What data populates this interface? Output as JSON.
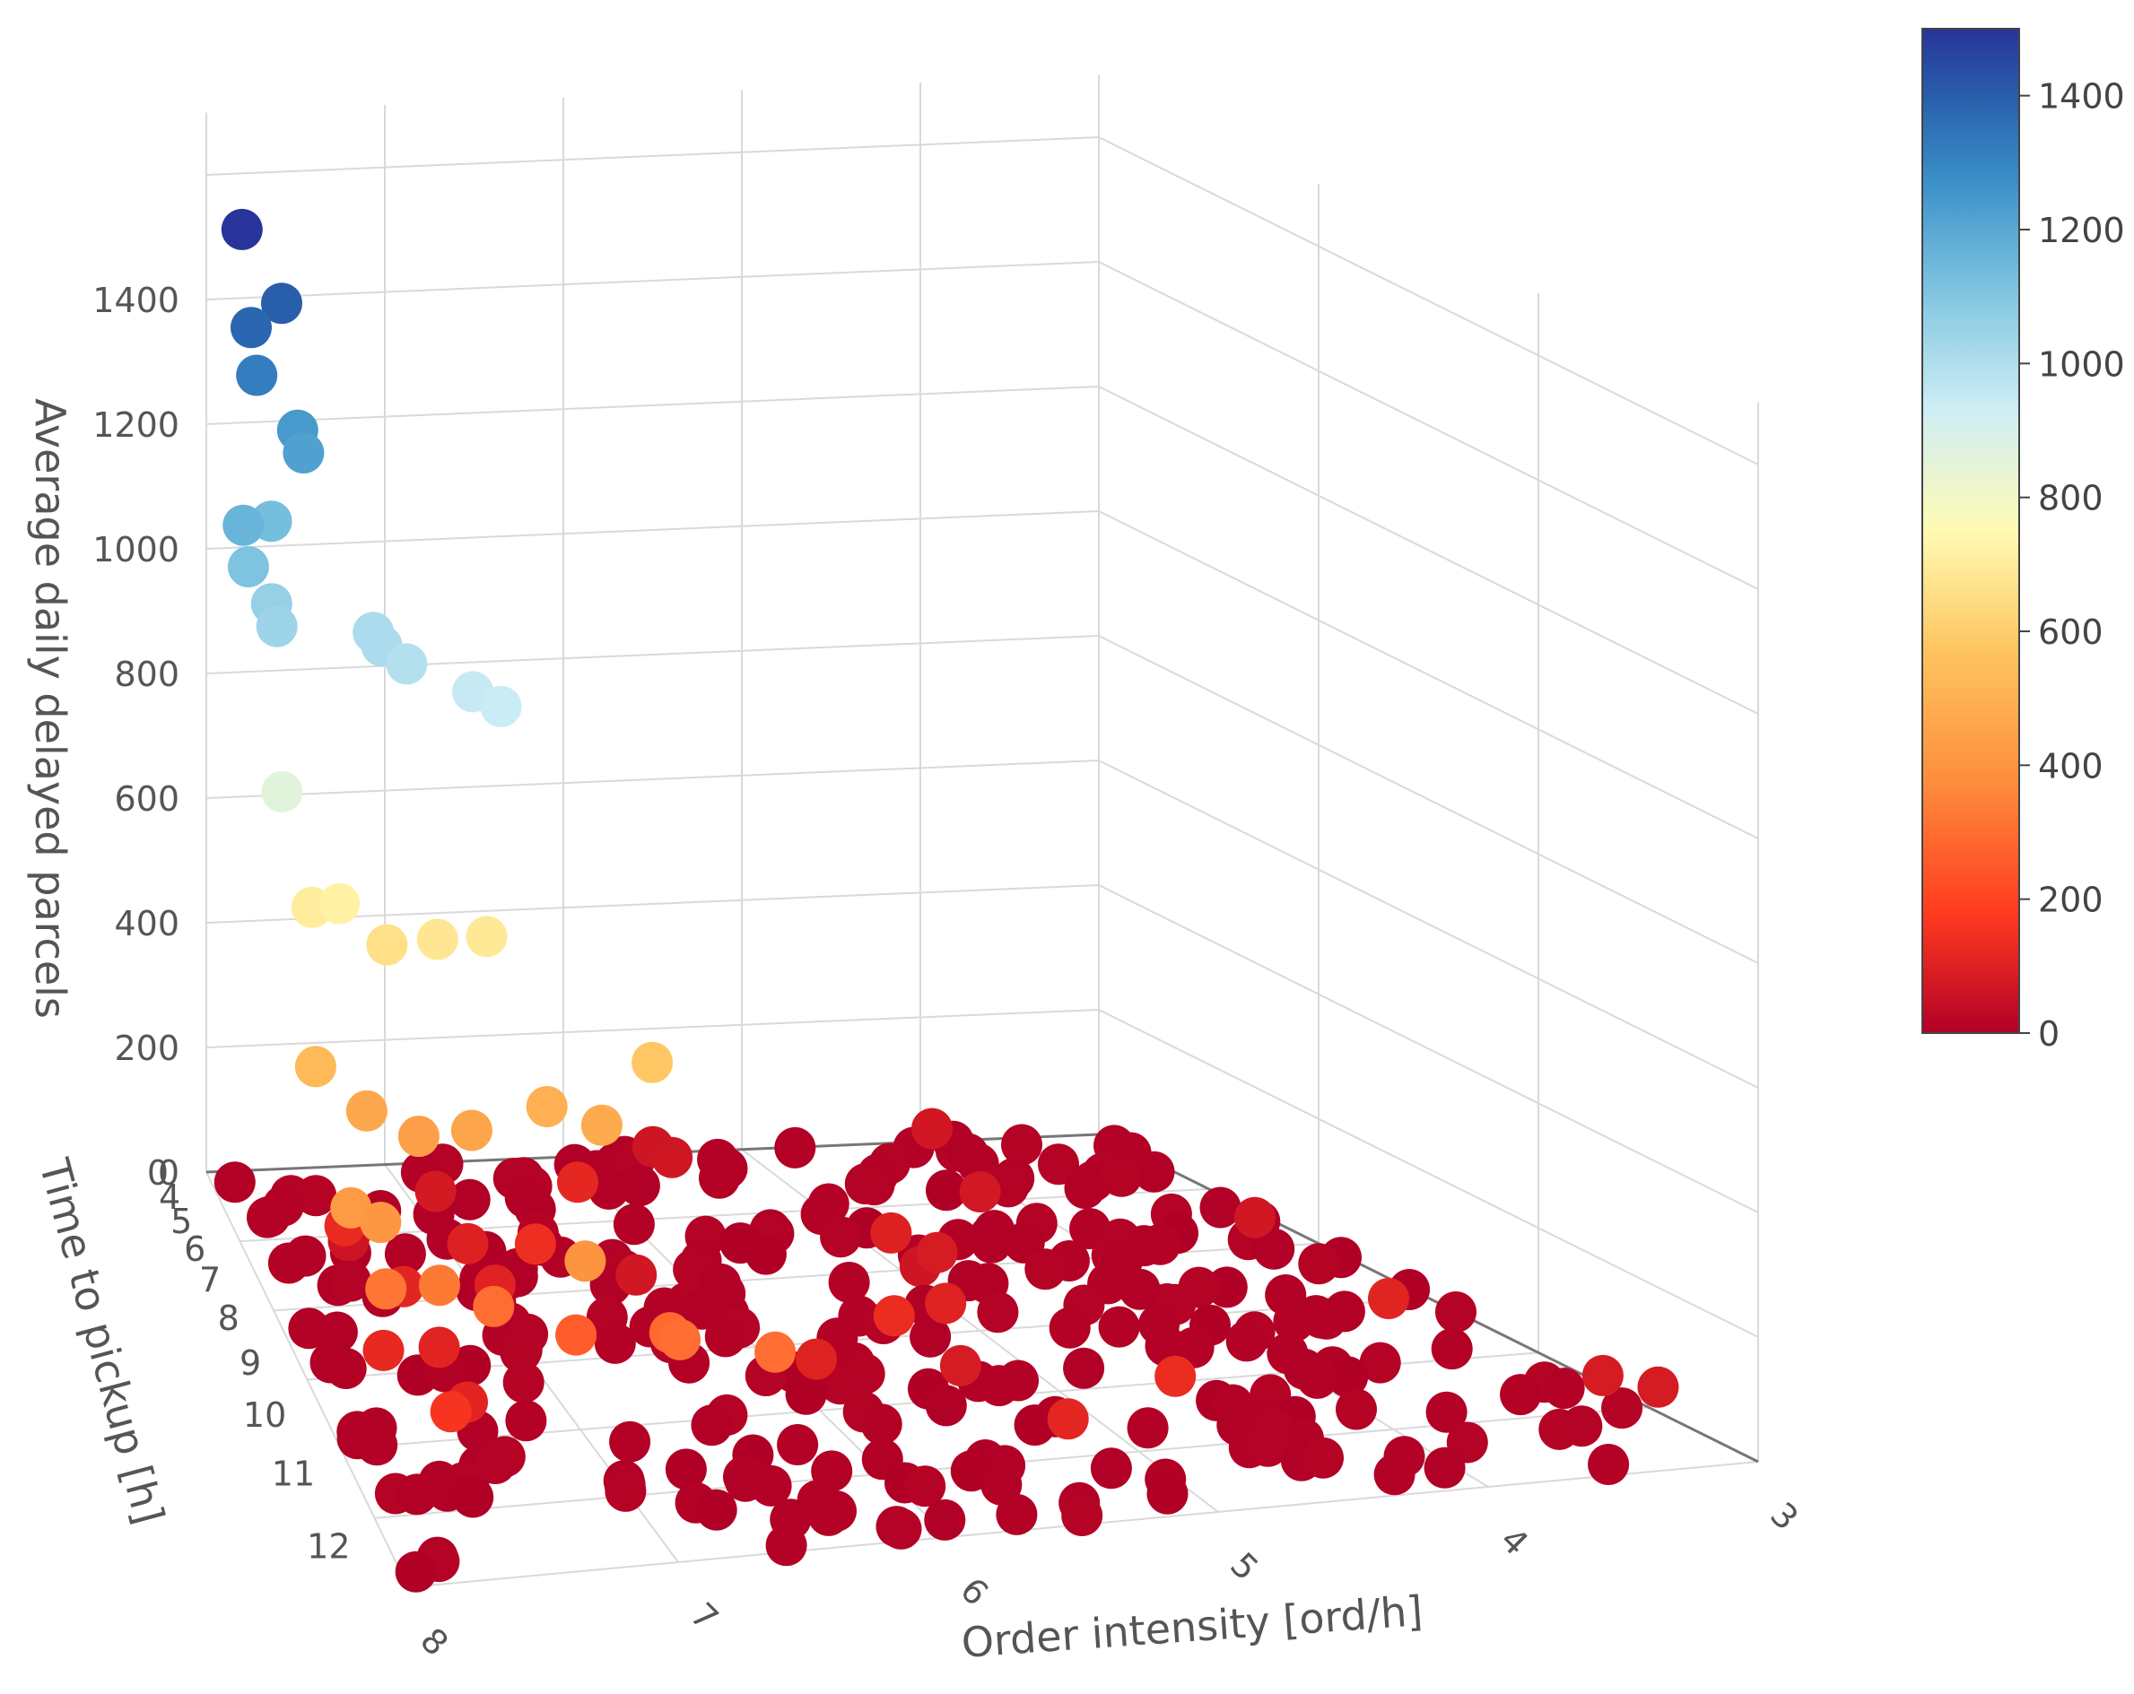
{
  "chart_data": {
    "type": "scatter",
    "title": "",
    "xlabel": "Order intensity [ord/h]",
    "ylabel": "Time to pickup [h]",
    "zlabel": "Average daily delayed parcels",
    "x_ticks": [
      "8",
      "7",
      "6",
      "5",
      "4",
      "3"
    ],
    "y_ticks": [
      "0",
      "4",
      "5",
      "6",
      "7",
      "8",
      "9",
      "10",
      "11",
      "12"
    ],
    "z_ticks": [
      "0",
      "200",
      "400",
      "600",
      "800",
      "1000",
      "1200",
      "1400"
    ],
    "colorbar": {
      "ticks": [
        "0",
        "200",
        "400",
        "600",
        "800",
        "1000",
        "1200",
        "1400"
      ],
      "range": [
        0,
        1500
      ],
      "colorscale": [
        "#b10026",
        "#ff3b1f",
        "#fd8d3c",
        "#fec45f",
        "#fffbb3",
        "#cfeef5",
        "#7ec4e0",
        "#3a8fc8",
        "#2960ac",
        "#28349a"
      ]
    },
    "elevated_points": [
      {
        "x": 7.8,
        "y": 0.0,
        "z": 1510
      },
      {
        "x": 7.6,
        "y": 0.2,
        "z": 1400
      },
      {
        "x": 7.8,
        "y": 0.5,
        "z": 1380
      },
      {
        "x": 7.8,
        "y": 0.8,
        "z": 1320
      },
      {
        "x": 7.6,
        "y": 1.0,
        "z": 1240
      },
      {
        "x": 7.6,
        "y": 1.3,
        "z": 1220
      },
      {
        "x": 7.8,
        "y": 1.6,
        "z": 1130
      },
      {
        "x": 8.0,
        "y": 2.2,
        "z": 1160
      },
      {
        "x": 8.0,
        "y": 2.5,
        "z": 1110
      },
      {
        "x": 7.9,
        "y": 2.7,
        "z": 1060
      },
      {
        "x": 7.9,
        "y": 3.0,
        "z": 1040
      },
      {
        "x": 7.4,
        "y": 2.8,
        "z": 1010
      },
      {
        "x": 7.4,
        "y": 3.2,
        "z": 1010
      },
      {
        "x": 7.3,
        "y": 3.4,
        "z": 990
      },
      {
        "x": 7.0,
        "y": 3.6,
        "z": 950
      },
      {
        "x": 6.9,
        "y": 3.9,
        "z": 940
      },
      {
        "x": 8.0,
        "y": 4.5,
        "z": 860
      },
      {
        "x": 7.9,
        "y": 5.0,
        "z": 700
      },
      {
        "x": 7.8,
        "y": 5.3,
        "z": 720
      },
      {
        "x": 7.6,
        "y": 5.5,
        "z": 660
      },
      {
        "x": 7.4,
        "y": 5.8,
        "z": 680
      },
      {
        "x": 7.2,
        "y": 6.0,
        "z": 690
      },
      {
        "x": 8.0,
        "y": 6.5,
        "z": 530
      },
      {
        "x": 7.8,
        "y": 6.8,
        "z": 470
      },
      {
        "x": 7.6,
        "y": 7.1,
        "z": 440
      },
      {
        "x": 7.4,
        "y": 7.4,
        "z": 460
      },
      {
        "x": 7.1,
        "y": 7.6,
        "z": 500
      },
      {
        "x": 6.9,
        "y": 7.9,
        "z": 480
      },
      {
        "x": 6.7,
        "y": 8.0,
        "z": 580
      },
      {
        "x": 8.0,
        "y": 8.6,
        "z": 420
      },
      {
        "x": 7.9,
        "y": 8.9,
        "z": 410
      },
      {
        "x": 7.9,
        "y": 9.2,
        "z": 320
      },
      {
        "x": 7.7,
        "y": 9.4,
        "z": 330
      },
      {
        "x": 7.5,
        "y": 9.6,
        "z": 300
      },
      {
        "x": 7.2,
        "y": 9.9,
        "z": 260
      },
      {
        "x": 7.2,
        "y": 10.3,
        "z": 400
      },
      {
        "x": 6.9,
        "y": 10.6,
        "z": 290
      },
      {
        "x": 7.7,
        "y": 10.0,
        "z": 160
      },
      {
        "x": 6.9,
        "y": 11.0,
        "z": 300
      },
      {
        "x": 6.6,
        "y": 11.6,
        "z": 300
      }
    ],
    "ground_cluster": {
      "x_range": [
        3.0,
        8.0
      ],
      "y_range": [
        0,
        12
      ],
      "z": 0,
      "count": 300,
      "note": "dense layer of points at ~0 delayed parcels over the whole grid"
    }
  }
}
